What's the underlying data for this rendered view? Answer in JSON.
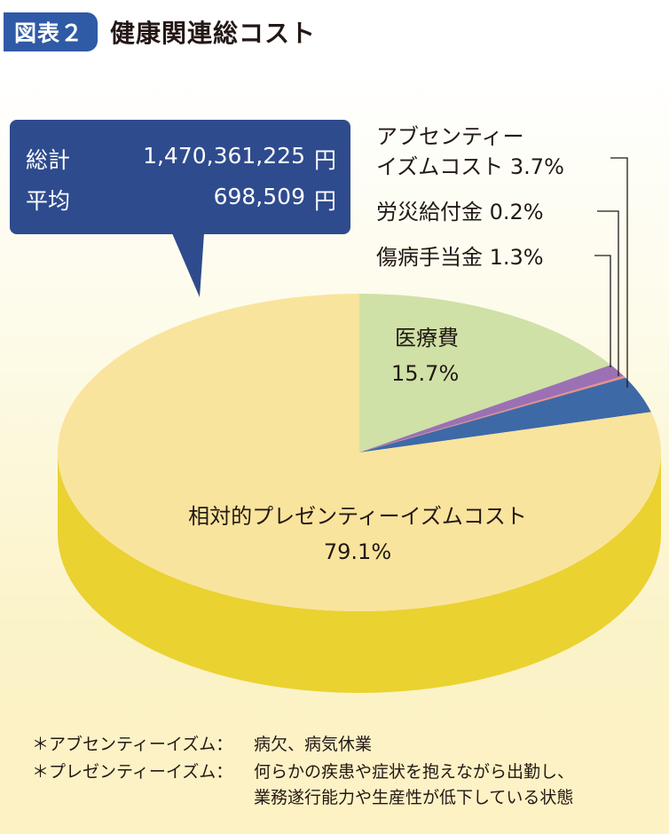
{
  "header": {
    "figure_label": "図表２",
    "title": "健康関連総コスト"
  },
  "callout": {
    "total_label": "総計",
    "total_value": "1,470,361,225",
    "total_unit": "円",
    "average_label": "平均",
    "average_value": "698,509",
    "average_unit": "円"
  },
  "chart_data": {
    "type": "pie",
    "title": "健康関連総コスト",
    "slices": [
      {
        "name": "医療費",
        "value": 15.7,
        "label": "15.7%",
        "color": "#cfe1a6"
      },
      {
        "name": "傷病手当金",
        "value": 1.3,
        "label": "1.3%",
        "color": "#9b71b4"
      },
      {
        "name": "労災給付金",
        "value": 0.2,
        "label": "0.2%",
        "color": "#ea8f86"
      },
      {
        "name": "アブセンティーイズムコスト",
        "value": 3.7,
        "label": "3.7%",
        "color": "#3e69a7"
      },
      {
        "name": "相対的プレゼンティーイズムコスト",
        "value": 79.1,
        "label": "79.1%",
        "color": "#f9e49d"
      }
    ],
    "annotations": {
      "iryo_name": "医療費",
      "iryo_pct": "15.7%",
      "presenteeism_name": "相対的プレゼンティーイズムコスト",
      "presenteeism_pct": "79.1%",
      "absenteeism_line1": "アブセンティー",
      "absenteeism_line2": "イズムコスト 3.7%",
      "rousai": "労災給付金 0.2%",
      "shobyo": "傷病手当金 1.3%"
    }
  },
  "notes": [
    {
      "term": "＊アブセンティーイズム：",
      "lines": [
        "病欠、病気休業"
      ]
    },
    {
      "term": "＊プレゼンティーイズム：",
      "lines": [
        "何らかの疾患や症状を抱えながら出勤し、",
        "業務遂行能力や生産性が低下している状態"
      ]
    }
  ]
}
